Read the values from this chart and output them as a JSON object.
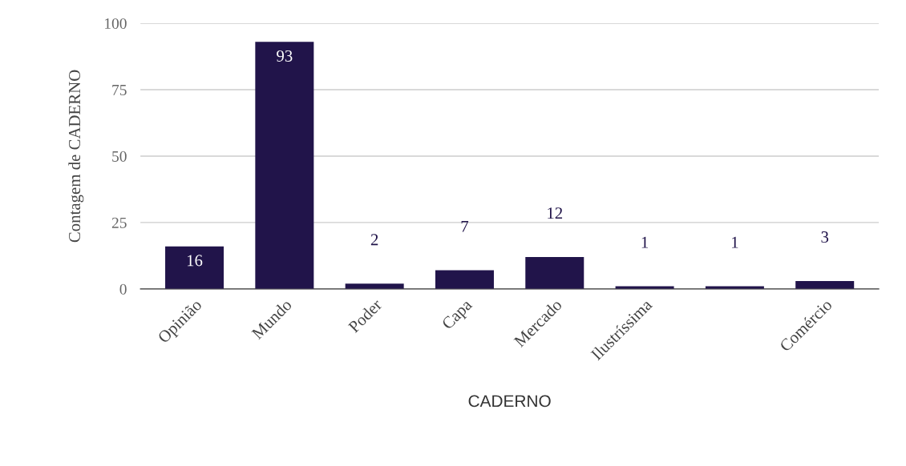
{
  "chart_data": {
    "type": "bar",
    "xlabel": "CADERNO",
    "ylabel": "Contagem de CADERNO",
    "categories": [
      "Opinião",
      "Mundo",
      "Poder",
      "Capa",
      "Mercado",
      "Ilustríssima",
      null,
      "Comércio"
    ],
    "values": [
      16,
      93,
      2,
      7,
      12,
      1,
      1,
      3
    ],
    "color": "#21144a",
    "ylim": [
      0,
      100
    ],
    "yticks": [
      0,
      25,
      50,
      75,
      100
    ],
    "grid": "y",
    "data_labels": true
  }
}
